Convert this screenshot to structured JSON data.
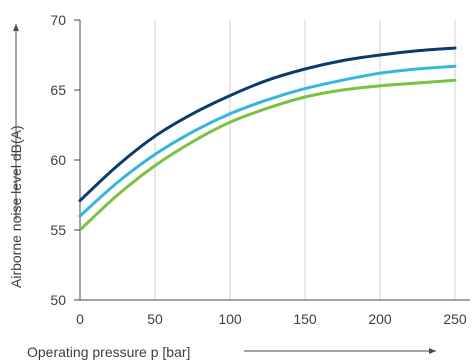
{
  "chart_data": {
    "type": "line",
    "title": "",
    "xlabel": "Operating pressure p [bar]",
    "ylabel": "Airborne noise level dB(A)",
    "xlim": [
      0,
      260
    ],
    "ylim": [
      50,
      70
    ],
    "xticks": [
      0,
      50,
      100,
      150,
      200,
      250
    ],
    "yticks": [
      50,
      55,
      60,
      65,
      70
    ],
    "x_tick_labels": [
      "0",
      "50",
      "100",
      "150",
      "200",
      "250"
    ],
    "y_tick_labels": [
      "50",
      "55",
      "60",
      "65",
      "70"
    ],
    "grid": "vertical",
    "legend": "none",
    "series": [
      {
        "color": "#0b3b6e",
        "x": [
          0,
          25,
          50,
          75,
          100,
          125,
          150,
          175,
          200,
          225,
          250
        ],
        "y": [
          57.1,
          59.6,
          61.7,
          63.3,
          64.6,
          65.7,
          66.5,
          67.1,
          67.5,
          67.8,
          68.0
        ]
      },
      {
        "color": "#36b6df",
        "x": [
          0,
          25,
          50,
          75,
          100,
          125,
          150,
          175,
          200,
          225,
          250
        ],
        "y": [
          56.0,
          58.4,
          60.4,
          62.0,
          63.3,
          64.3,
          65.1,
          65.7,
          66.2,
          66.5,
          66.7
        ]
      },
      {
        "color": "#7bc142",
        "x": [
          0,
          25,
          50,
          75,
          100,
          125,
          150,
          175,
          200,
          225,
          250
        ],
        "y": [
          55.0,
          57.5,
          59.6,
          61.3,
          62.7,
          63.7,
          64.5,
          65.0,
          65.3,
          65.5,
          65.7
        ]
      }
    ]
  },
  "colors": {
    "axis": "#4a4a4a",
    "grid": "#d2d2d2",
    "text": "#3f3f3f"
  }
}
